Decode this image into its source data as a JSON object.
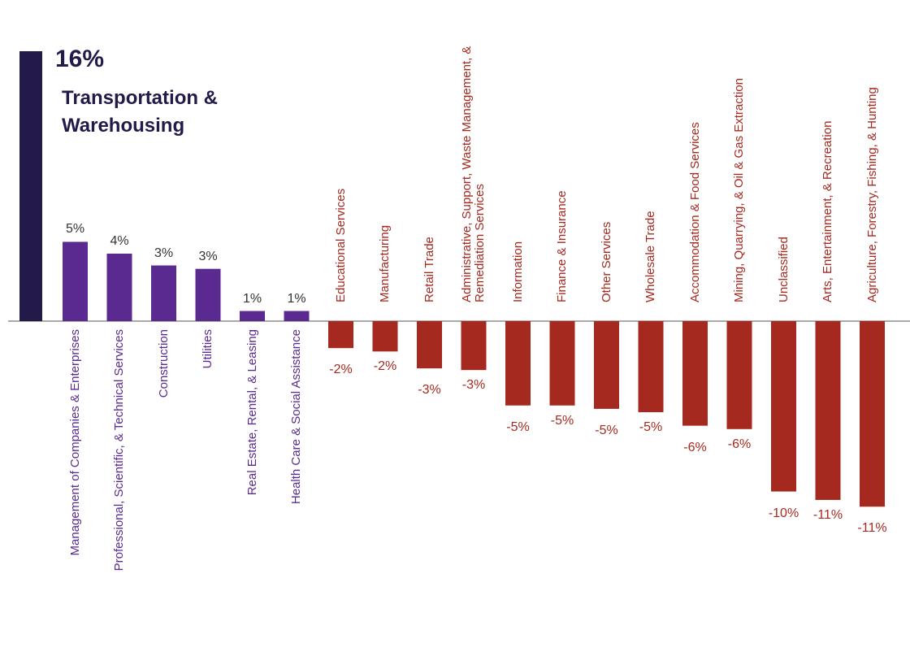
{
  "chart_data": {
    "type": "bar",
    "categories": [
      "Transportation & Warehousing",
      "Management of Companies & Enterprises",
      "Professional, Scientific, & Technical Services",
      "Construction",
      "Utilities",
      "Real Estate, Rental, & Leasing",
      "Health Care & Social Assistance",
      "Educational Services",
      "Manufacturing",
      "Retail Trade",
      "Administrative, Support, Waste Management, & Remediation Services",
      "Information",
      "Finance & Insurance",
      "Other Services",
      "Wholesale Trade",
      "Accommodation & Food Services",
      "Mining, Quarrying, & Oil & Gas Extraction",
      "Unclassified",
      "Arts, Entertainment, & Recreation",
      "Agriculture, Forestry, Fishing, & Hunting"
    ],
    "values": [
      16,
      4.7,
      4.0,
      3.3,
      3.1,
      0.6,
      0.6,
      -1.6,
      -1.8,
      -2.8,
      -2.9,
      -5.0,
      -5.0,
      -5.2,
      -5.4,
      -6.2,
      -6.4,
      -10.1,
      -10.6,
      -11.0
    ],
    "value_labels": [
      "16%",
      "5%",
      "4%",
      "3%",
      "3%",
      "1%",
      "1%",
      "-2%",
      "-2%",
      "-3%",
      "-3%",
      "-5%",
      "-5%",
      "-5%",
      "-5%",
      "-6%",
      "-6%",
      "-10%",
      "-11%",
      "-11%"
    ],
    "colors": [
      "#241a4a",
      "#5b2a90",
      "#5b2a90",
      "#5b2a90",
      "#5b2a90",
      "#5b2a90",
      "#5b2a90",
      "#a6291f",
      "#a6291f",
      "#a6291f",
      "#a6291f",
      "#a6291f",
      "#a6291f",
      "#a6291f",
      "#a6291f",
      "#a6291f",
      "#a6291f",
      "#a6291f",
      "#a6291f",
      "#a6291f"
    ]
  }
}
